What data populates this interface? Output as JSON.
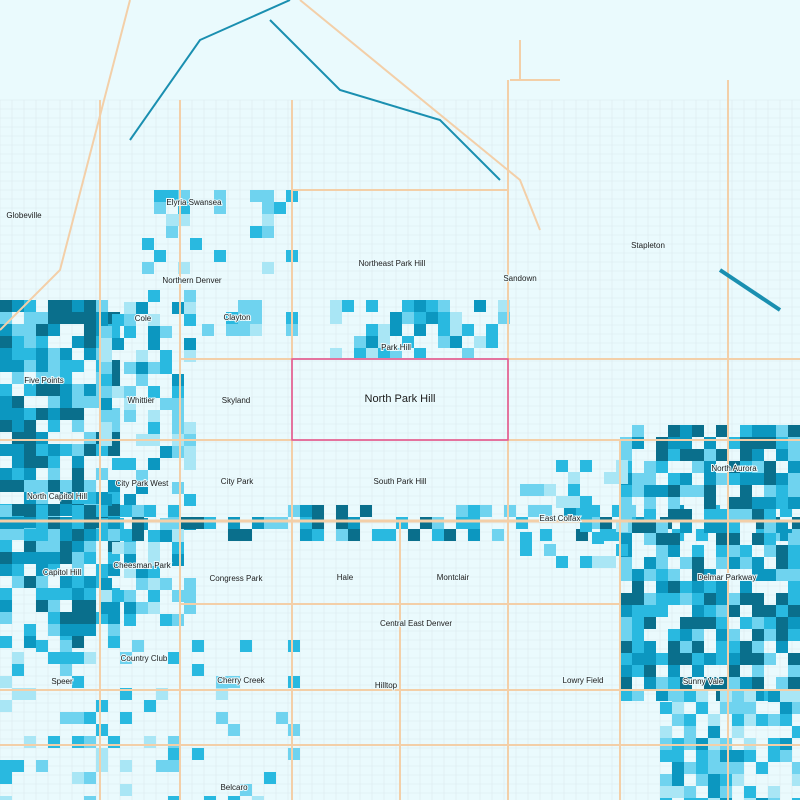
{
  "map": {
    "highlighted_area": "North Park Hill",
    "labels": [
      "Globeville",
      "Elyria Swansea",
      "Stapleton",
      "Northeast Park Hill",
      "Sandown",
      "Northern Denver",
      "Cole",
      "Clayton",
      "Park Hill",
      "Five Points",
      "Whittier",
      "Skyland",
      "North Aurora",
      "City Park",
      "South Park Hill",
      "North Capitol Hill",
      "City Park West",
      "East Colfax",
      "Cheesman Park",
      "Capitol Hill",
      "Congress Park",
      "Hale",
      "Montclair",
      "Delmar Parkway",
      "Central East Denver",
      "Country Club",
      "Speer",
      "Cherry Creek",
      "Hilltop",
      "Lowry Field",
      "Sunny Vale",
      "Belcaro"
    ]
  }
}
